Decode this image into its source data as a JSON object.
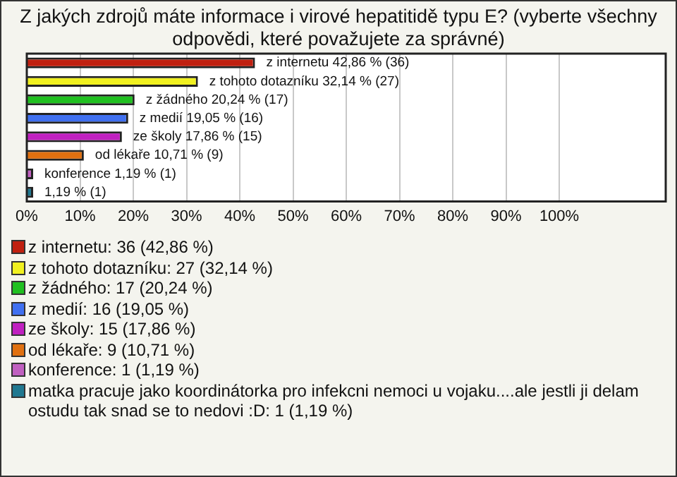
{
  "chart_data": {
    "type": "bar",
    "orientation": "horizontal",
    "title": "Z jakých zdrojů máte informace i virové hepatitidě typu E? (vyberte všechny odpovědi, které považujete za správné)",
    "categories": [
      "z internetu",
      "z tohoto dotazníku",
      "z žádného",
      "z medií",
      "ze školy",
      "od lékaře",
      "konference",
      null
    ],
    "values": [
      42.86,
      32.14,
      20.24,
      19.05,
      17.86,
      10.71,
      1.19,
      1.19
    ],
    "value_labels": [
      "42,86 % (36)",
      "32,14 % (27)",
      "20,24 % (17)",
      "19,05 % (16)",
      "17,86 % (15)",
      "10,71 % (9)",
      "1,19 % (1)",
      "1,19 % (1)"
    ],
    "colors": [
      "#c02010",
      "#f0f020",
      "#20c020",
      "#4070f0",
      "#c020c0",
      "#e07010",
      "#c060c0",
      "#207890"
    ],
    "xlim": [
      0,
      120
    ],
    "xticks": [
      {
        "value": 0,
        "label": "0%"
      },
      {
        "value": 10,
        "label": "10%"
      },
      {
        "value": 20,
        "label": "20%"
      },
      {
        "value": 30,
        "label": "30%"
      },
      {
        "value": 40,
        "label": "40%"
      },
      {
        "value": 50,
        "label": "50%"
      },
      {
        "value": 60,
        "label": "60%"
      },
      {
        "value": 70,
        "label": "70%"
      },
      {
        "value": 80,
        "label": "80%"
      },
      {
        "value": 90,
        "label": "90%"
      },
      {
        "value": 100,
        "label": "100%"
      }
    ],
    "grid": "x",
    "tick_labels": "x",
    "annotations": [
      "z internetu: 36 (42,86 %)",
      "z tohoto dotazníku: 27 (32,14 %)",
      "z žádného: 17 (20,24 %)",
      "z medií: 16 (19,05 %)",
      "ze školy: 15 (17,86 %)",
      "od lékaře: 9 (10,71 %)",
      "konference: 1 (1,19 %)",
      "matka pracuje jako koordinátorka pro infekcni nemoci u vojaku....ale jestli ji delam ostudu tak snad se to nedovi :D: 1 (1,19 %)"
    ]
  }
}
